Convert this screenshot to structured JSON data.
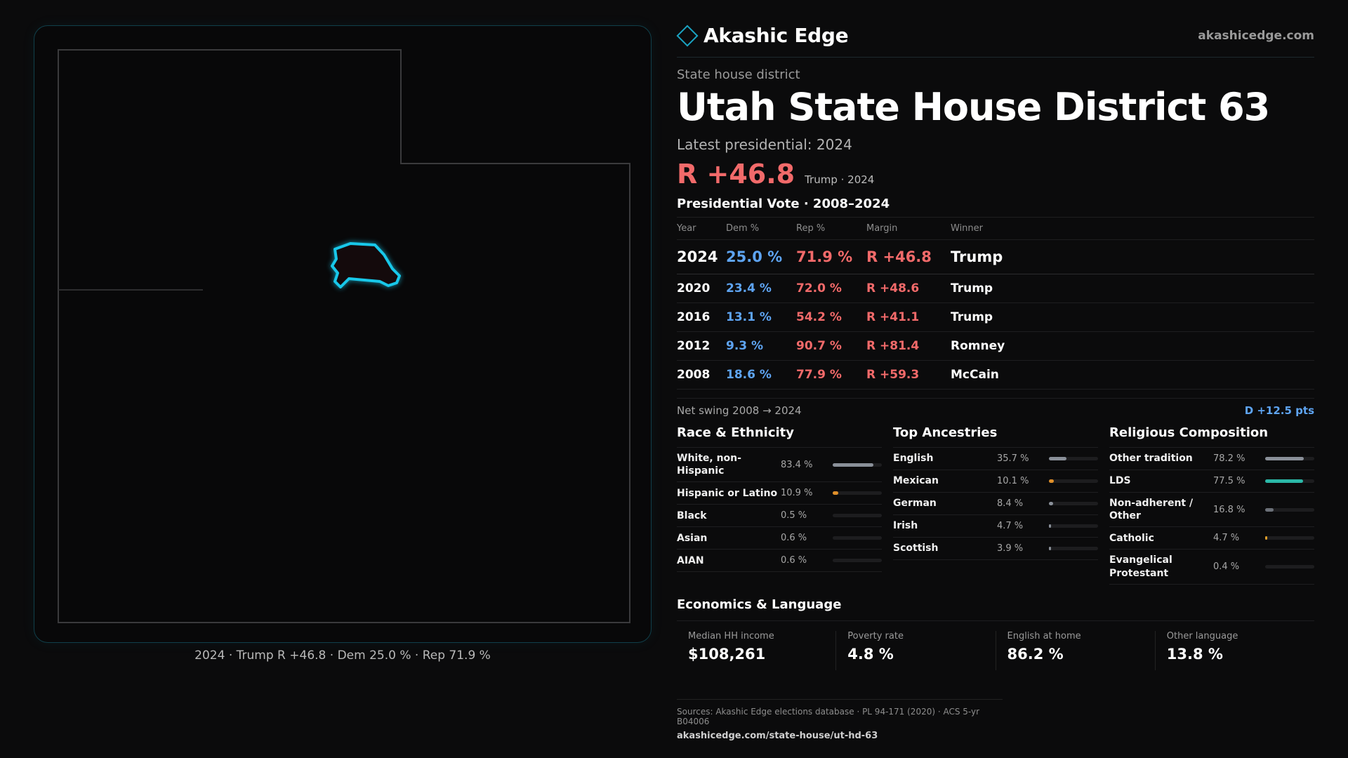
{
  "header": {
    "brand": "Akashic Edge",
    "site": "akashicedge.com"
  },
  "district": {
    "kind": "State house district",
    "title": "Utah State House District 63",
    "latest_label": "Latest presidential: 2024",
    "margin": "R +46.8",
    "margin_sub": "Trump · 2024"
  },
  "map": {
    "caption": "2024 · Trump R +46.8 · Dem 25.0 % · Rep 71.9 %"
  },
  "votes": {
    "title": "Presidential Vote · 2008–2024",
    "headers": [
      "Year",
      "Dem %",
      "Rep %",
      "Margin",
      "Winner"
    ],
    "rows": [
      {
        "year": "2024",
        "dem": "25.0 %",
        "rep": "71.9 %",
        "margin": "R +46.8",
        "winner": "Trump"
      },
      {
        "year": "2020",
        "dem": "23.4 %",
        "rep": "72.0 %",
        "margin": "R +48.6",
        "winner": "Trump"
      },
      {
        "year": "2016",
        "dem": "13.1 %",
        "rep": "54.2 %",
        "margin": "R +41.1",
        "winner": "Trump"
      },
      {
        "year": "2012",
        "dem": "9.3 %",
        "rep": "90.7 %",
        "margin": "R +81.4",
        "winner": "Romney"
      },
      {
        "year": "2008",
        "dem": "18.6 %",
        "rep": "77.9 %",
        "margin": "R +59.3",
        "winner": "McCain"
      }
    ],
    "swing_label": "Net swing 2008 → 2024",
    "swing_value": "D +12.5 pts"
  },
  "race": {
    "title": "Race & Ethnicity",
    "items": [
      {
        "label": "White, non-Hispanic",
        "value": "83.4 %",
        "fraction": 0.834,
        "color": "#8a9099"
      },
      {
        "label": "Hispanic or Latino",
        "value": "10.9 %",
        "fraction": 0.109,
        "color": "#e0902a"
      },
      {
        "label": "Black",
        "value": "0.5 %",
        "fraction": 0.005,
        "color": "#6b6b6b"
      },
      {
        "label": "Asian",
        "value": "0.6 %",
        "fraction": 0.006,
        "color": "#6b6b6b"
      },
      {
        "label": "AIAN",
        "value": "0.6 %",
        "fraction": 0.006,
        "color": "#6b6b6b"
      }
    ]
  },
  "ancestry": {
    "title": "Top Ancestries",
    "items": [
      {
        "label": "English",
        "value": "35.7 %",
        "fraction": 0.357,
        "color": "#8a9099"
      },
      {
        "label": "Mexican",
        "value": "10.1 %",
        "fraction": 0.101,
        "color": "#e0902a"
      },
      {
        "label": "German",
        "value": "8.4 %",
        "fraction": 0.084,
        "color": "#8a9099"
      },
      {
        "label": "Irish",
        "value": "4.7 %",
        "fraction": 0.047,
        "color": "#8a9099"
      },
      {
        "label": "Scottish",
        "value": "3.9 %",
        "fraction": 0.039,
        "color": "#8a9099"
      }
    ]
  },
  "religion": {
    "title": "Religious Composition",
    "items": [
      {
        "label": "Other tradition",
        "value": "78.2 %",
        "fraction": 0.782,
        "color": "#8a9099"
      },
      {
        "label": "LDS",
        "value": "77.5 %",
        "fraction": 0.775,
        "color": "#2bb8a8"
      },
      {
        "label": "Non-adherent / Other",
        "value": "16.8 %",
        "fraction": 0.168,
        "color": "#6b7078"
      },
      {
        "label": "Catholic",
        "value": "4.7 %",
        "fraction": 0.047,
        "color": "#e0a02a"
      },
      {
        "label": "Evangelical Protestant",
        "value": "0.4 %",
        "fraction": 0.004,
        "color": "#6b6b6b"
      }
    ]
  },
  "economics": {
    "title": "Economics & Language",
    "items": [
      {
        "label": "Median HH income",
        "value": "$108,261"
      },
      {
        "label": "Poverty rate",
        "value": "4.8 %"
      },
      {
        "label": "English at home",
        "value": "86.2 %"
      },
      {
        "label": "Other language",
        "value": "13.8 %"
      }
    ]
  },
  "footer": {
    "sources": "Sources: Akashic Edge elections database · PL 94-171 (2020) · ACS 5-yr B04006",
    "url": "akashicedge.com/state-house/ut-hd-63"
  },
  "colors": {
    "dem": "#5ea4f2",
    "rep": "#f26a6a",
    "accent": "#1aa3c2"
  }
}
